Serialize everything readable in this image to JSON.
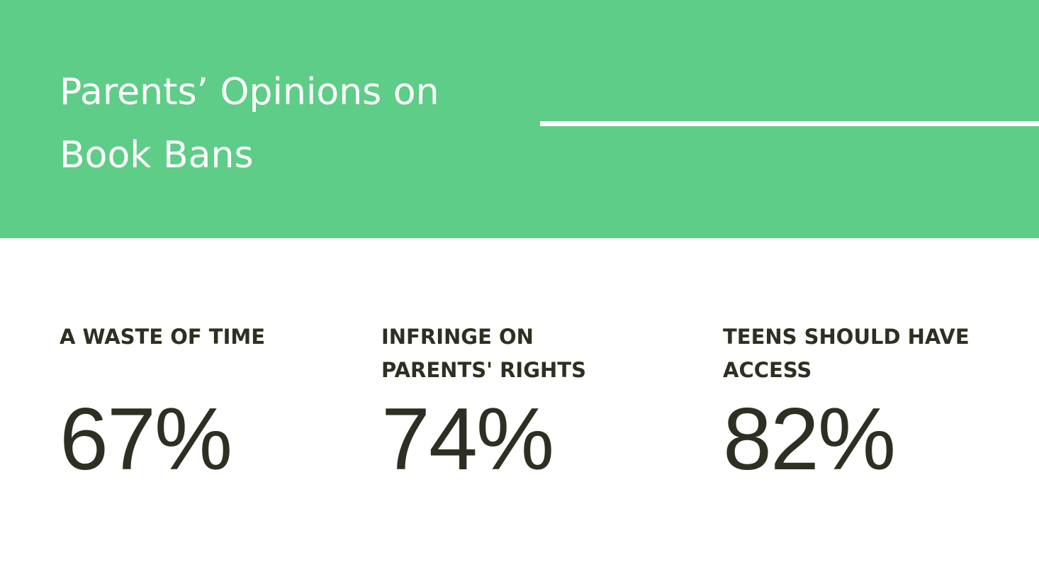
{
  "header": {
    "title": "Parents’ Opinions on Book Bans"
  },
  "stats": [
    {
      "label": "A WASTE OF TIME",
      "value": "67%"
    },
    {
      "label": "INFRINGE ON PARENTS' RIGHTS",
      "value": "74%"
    },
    {
      "label": "TEENS SHOULD HAVE ACCESS",
      "value": "82%"
    }
  ]
}
